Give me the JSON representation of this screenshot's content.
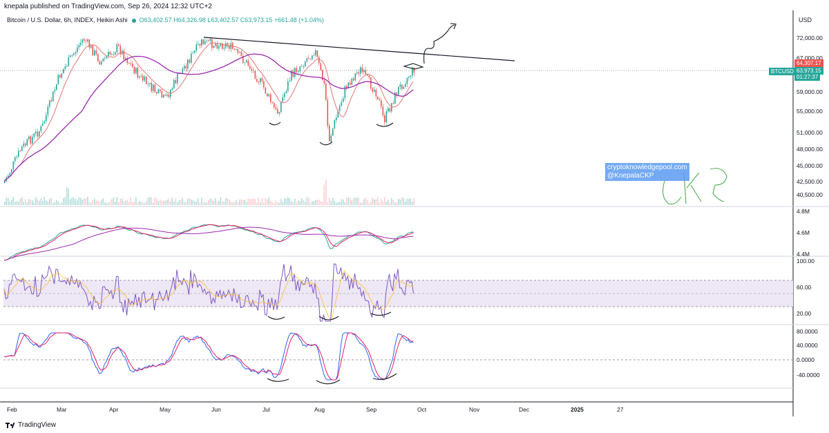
{
  "header": {
    "published": "knepala published on TradingView.com, Sep 26, 2024 12:32 UTC+2"
  },
  "legend": {
    "symbol": "Bitcoin / U.S. Dollar, 6h, INDEX, Heikin Ashi",
    "open": "O63,402.57",
    "high": "H64,326.98",
    "low": "L63,402.57",
    "close": "C63,973.15",
    "change": "+661.48 (+1.04%)"
  },
  "currency": "USD",
  "price_tags": {
    "red": "64,307.17",
    "green": "63,973.15",
    "countdown": "01:27:37",
    "symbol": "BTCUSD"
  },
  "watermark": {
    "line1": "cryptoknowledgepool.com",
    "line2": "@KnepalaCKP"
  },
  "footer": {
    "brand": "TradingView"
  },
  "colors": {
    "up": "#26a69a",
    "down": "#ef5350",
    "ma_slow": "#9c27b0",
    "ma_fast": "#e57373",
    "rsi_band": "#ede7f6"
  },
  "chart_data": [
    {
      "type": "line",
      "panel": "price",
      "title": "Bitcoin / U.S. Dollar, 6h, INDEX, Heikin Ashi",
      "x": [
        "Feb",
        "Mar",
        "Apr",
        "May",
        "Jun",
        "Jul",
        "Aug",
        "Sep",
        "Oct"
      ],
      "series": [
        {
          "values": [
            42000,
            61000,
            69000,
            63000,
            68000,
            58000,
            60000,
            55000,
            64000
          ]
        },
        {
          "values": [
            42500,
            52000,
            66000,
            64500,
            65000,
            63000,
            62000,
            59000,
            61000
          ]
        }
      ],
      "y_ticks": [
        "72,000.00",
        "67,000.00",
        "63,000.00",
        "59,000.00",
        "55,000.00",
        "51,000.00",
        "48,000.00",
        "45,000.00",
        "42,500.00",
        "40,500.00"
      ],
      "x_ticks": [
        "Feb",
        "Mar",
        "Apr",
        "May",
        "Jun",
        "Jul",
        "Aug",
        "Sep",
        "Oct",
        "Nov",
        "Dec",
        "2025",
        "27"
      ]
    },
    {
      "type": "line",
      "panel": "indicator-1",
      "y_ticks": [
        "4.8M",
        "4.6M",
        "4.4M"
      ]
    },
    {
      "type": "line",
      "panel": "rsi",
      "y_ticks": [
        "100.00",
        "60.00",
        "20.00"
      ],
      "band": [
        30,
        70
      ]
    },
    {
      "type": "line",
      "panel": "oscillator",
      "y_ticks": [
        "80.0000",
        "40.0000",
        "0.0000",
        "-40.0000"
      ]
    }
  ]
}
